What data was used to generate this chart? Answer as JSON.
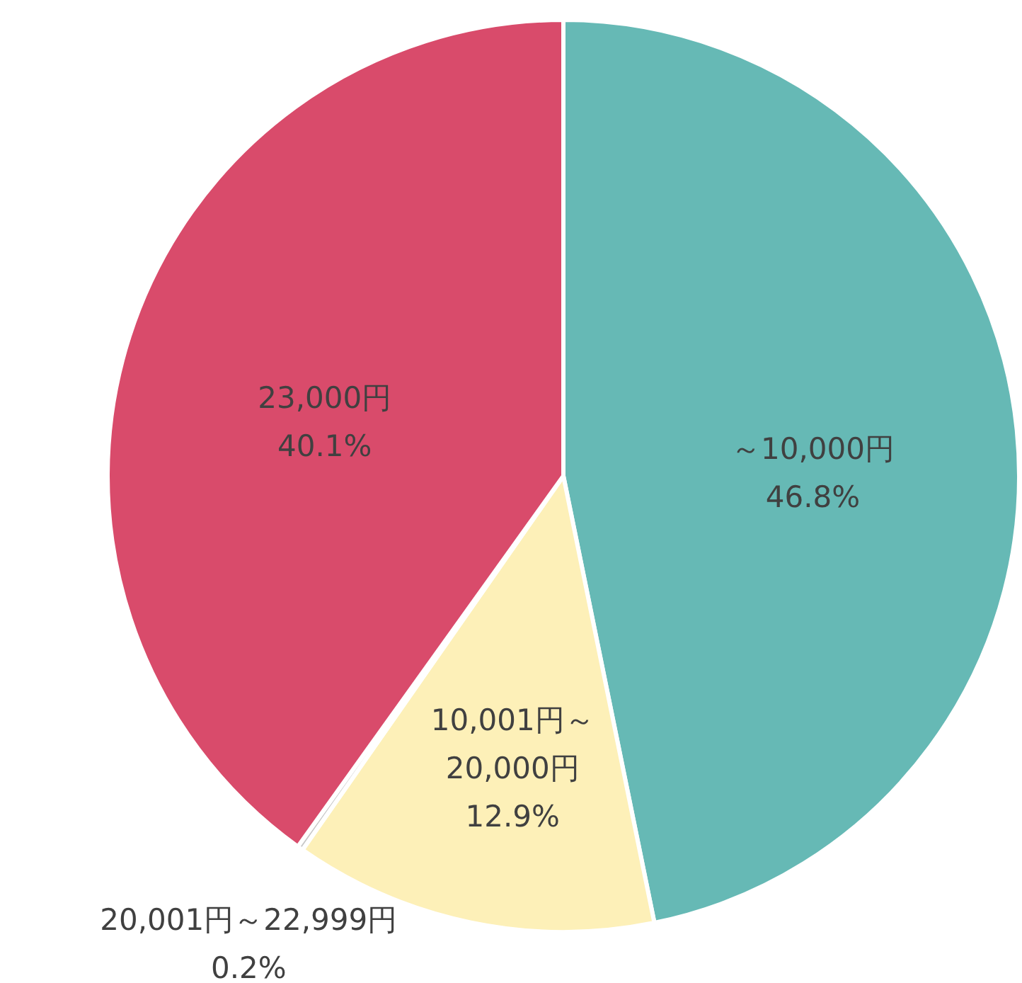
{
  "chart_data": {
    "type": "pie",
    "categories": [
      "～10,000円",
      "10,001円～\n20,000円",
      "20,001円～22,999円",
      "23,000円"
    ],
    "values": [
      46.8,
      12.9,
      0.2,
      40.1
    ],
    "value_labels": [
      "46.8%",
      "12.9%",
      "0.2%",
      "40.1%"
    ],
    "colors": [
      "#66b9b5",
      "#fdf0b8",
      "#c8c8c8",
      "#d94b6b"
    ]
  }
}
